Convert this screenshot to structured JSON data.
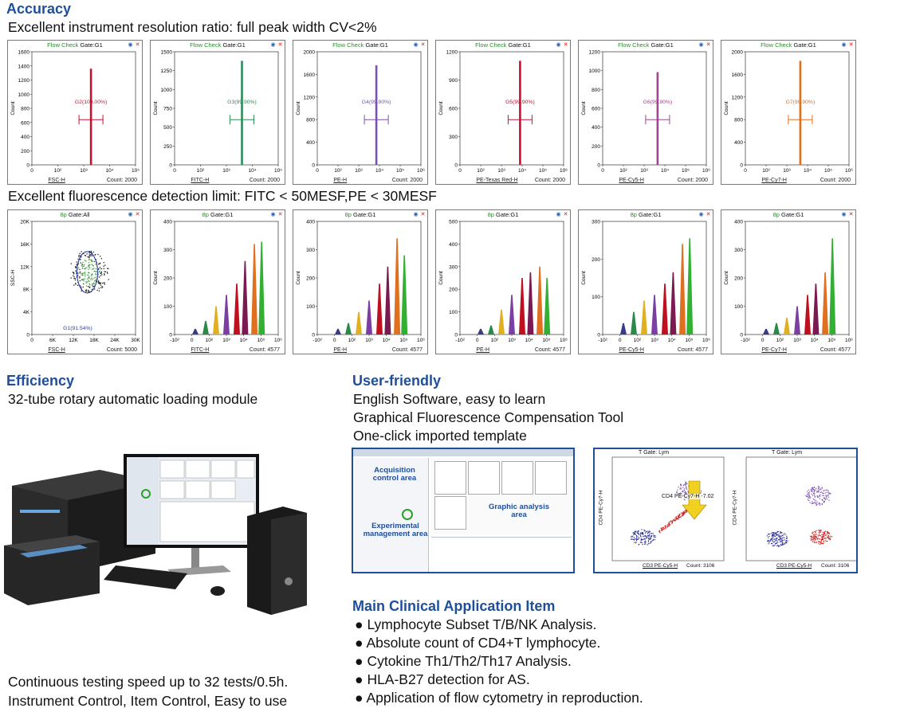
{
  "accuracy": {
    "heading": "Accuracy",
    "line1": "Excellent instrument resolution ratio: full peak width CV<2%",
    "line2": "Excellent fluorescence detection limit: FITC < 50MESF,PE < 30MESF"
  },
  "common": {
    "title_fc": "Flow Check",
    "gate_g1": "Gate:G1",
    "gate_all": "Gate:All",
    "title_8p": "8p",
    "info_icon": "info-icon",
    "close_icon": "close-icon"
  },
  "row1": [
    {
      "axis": "FSC-H",
      "count": "Count: 2000",
      "gate_label": "G2(100.00%)",
      "color": "#c8102e",
      "y_ticks": [
        "1600",
        "1400",
        "1200",
        "1000",
        "800",
        "600",
        "400",
        "200",
        "0"
      ],
      "x_ticks": [
        "0",
        "10²",
        "10³",
        "10⁴",
        "10⁵"
      ]
    },
    {
      "axis": "FITC-H",
      "count": "Count: 2000",
      "gate_label": "G3(99.90%)",
      "color": "#2e8b57",
      "y_ticks": [
        "1500",
        "1250",
        "1000",
        "750",
        "500",
        "250",
        "0"
      ],
      "x_ticks": [
        "0",
        "10²",
        "10³",
        "10⁴",
        "10⁵"
      ]
    },
    {
      "axis": "PE-H",
      "count": "Count: 2000",
      "gate_label": "G4(99.90%)",
      "color": "#7b4fb3",
      "y_ticks": [
        "2000",
        "1600",
        "1200",
        "800",
        "400",
        "0"
      ],
      "x_ticks": [
        "0",
        "10²",
        "10³",
        "10⁴",
        "10⁵",
        "10⁶"
      ]
    },
    {
      "axis": "PE-Texas Red-H",
      "count": "Count: 2000",
      "gate_label": "G5(99.90%)",
      "color": "#c8102e",
      "y_ticks": [
        "1200",
        "900",
        "600",
        "300",
        "0"
      ],
      "x_ticks": [
        "0",
        "10²",
        "10³",
        "10⁴",
        "10⁵",
        "10⁶"
      ]
    },
    {
      "axis": "PE-Cy5-H",
      "count": "Count: 2000",
      "gate_label": "G6(99.90%)",
      "color": "#a0458f",
      "y_ticks": [
        "1200",
        "1000",
        "800",
        "600",
        "400",
        "200",
        "0"
      ],
      "x_ticks": [
        "0",
        "10²",
        "10³",
        "10⁴",
        "10⁵",
        "10⁶"
      ]
    },
    {
      "axis": "PE-Cy7-H",
      "count": "Count: 2000",
      "gate_label": "G7(99.90%)",
      "color": "#e07020",
      "y_ticks": [
        "2000",
        "1600",
        "1200",
        "800",
        "400",
        "0"
      ],
      "x_ticks": [
        "0",
        "10²",
        "10³",
        "10⁴",
        "10⁵",
        "10⁶"
      ]
    }
  ],
  "row2_scatter": {
    "axis_x": "FSC-H",
    "axis_y": "SSC-H",
    "count": "Count: 5000",
    "gate_label": "G1(91.54%)",
    "y_ticks": [
      "20K",
      "16K",
      "12K",
      "8K",
      "4K",
      "0"
    ],
    "x_ticks": [
      "0",
      "6K",
      "12K",
      "18K",
      "24K",
      "30K"
    ]
  },
  "row2": [
    {
      "axis": "FITC-H",
      "count": "Count: 4577",
      "y_ticks": [
        "400",
        "300",
        "200",
        "100",
        "0"
      ],
      "x_ticks": [
        "-10²",
        "0",
        "10²",
        "10³",
        "10⁴",
        "10⁵",
        "10⁶"
      ]
    },
    {
      "axis": "PE-H",
      "count": "Count: 4577",
      "y_ticks": [
        "400",
        "300",
        "200",
        "100",
        "0"
      ],
      "x_ticks": [
        "-10²",
        "0",
        "10²",
        "10³",
        "10⁴",
        "10⁵",
        "10⁶"
      ]
    },
    {
      "axis": "PE-H",
      "count": "Count: 4577",
      "y_ticks": [
        "500",
        "400",
        "300",
        "200",
        "100",
        "0"
      ],
      "x_ticks": [
        "-10²",
        "0",
        "10²",
        "10³",
        "10⁴",
        "10⁵",
        "10⁶"
      ]
    },
    {
      "axis": "PE-Cy5-H",
      "count": "Count: 4577",
      "y_ticks": [
        "300",
        "200",
        "100",
        "0"
      ],
      "x_ticks": [
        "-10²",
        "0",
        "10²",
        "10³",
        "10⁴",
        "10⁵",
        "10⁶"
      ]
    },
    {
      "axis": "PE-Cy7-H",
      "count": "Count: 4577",
      "y_ticks": [
        "400",
        "300",
        "200",
        "100",
        "0"
      ],
      "x_ticks": [
        "-10²",
        "0",
        "10²",
        "10³",
        "10⁴",
        "10⁵",
        "10⁶"
      ]
    }
  ],
  "efficiency": {
    "heading": "Efficiency",
    "line1": "32-tube rotary automatic loading module",
    "speed": "Continuous testing speed up to 32 tests/0.5h.",
    "control": "Instrument Control, Item Control, Easy to use"
  },
  "user": {
    "heading": "User-friendly",
    "lines": [
      "English Software, easy to learn",
      "Graphical Fluorescence Compensation Tool",
      "One-click imported template"
    ],
    "sw_acq": "Acquisition control area",
    "sw_graph": "Graphic analysis area",
    "sw_exp": "Experimental management area",
    "comp_gate": "T  Gate: Lym",
    "comp_x": "CD3 PE-Cy5-H",
    "comp_y": "CD4 PE-Cy7-H",
    "comp_count": "Count: 3106",
    "comp_value": "CD4 PE-Cy7-H  -7.02"
  },
  "clinical": {
    "heading": "Main Clinical Application Item",
    "items": [
      "Lymphocyte Subset T/B/NK Analysis.",
      "Absolute count of CD4+T lymphocyte.",
      "Cytokine Th1/Th2/Th17 Analysis.",
      "HLA-B27 detection for AS.",
      "Application of flow cytometry in reproduction."
    ]
  }
}
